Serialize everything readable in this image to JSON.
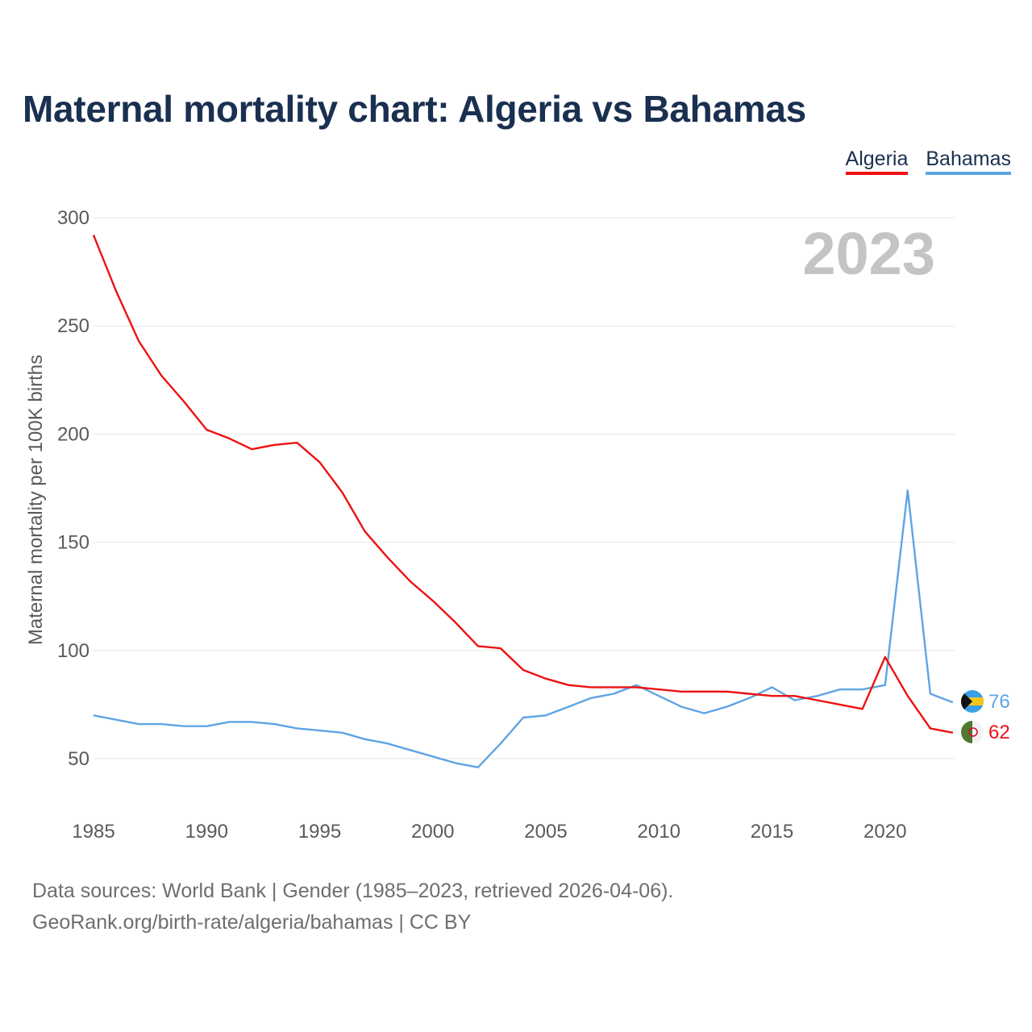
{
  "title": "Maternal mortality chart: Algeria vs Bahamas",
  "legend": [
    {
      "label": "Algeria",
      "color": "#ee1111"
    },
    {
      "label": "Bahamas",
      "color": "#5fa4e3"
    }
  ],
  "year_watermark": "2023",
  "footer": {
    "line1": "Data sources: World Bank | Gender (1985–2023, retrieved 2026-04-06).",
    "line2": "GeoRank.org/birth-rate/algeria/bahamas | CC BY"
  },
  "chart_data": {
    "type": "line",
    "title": "Maternal mortality chart: Algeria vs Bahamas",
    "xlabel": "",
    "ylabel": "Maternal mortality per 100K births",
    "xlim": [
      1985,
      2023
    ],
    "ylim": [
      30,
      300
    ],
    "x_ticks": [
      1985,
      1990,
      1995,
      2000,
      2005,
      2010,
      2015,
      2020
    ],
    "y_ticks": [
      50,
      100,
      150,
      200,
      250,
      300
    ],
    "grid": true,
    "legend_position": "top-right",
    "x": [
      1985,
      1986,
      1987,
      1988,
      1989,
      1990,
      1991,
      1992,
      1993,
      1994,
      1995,
      1996,
      1997,
      1998,
      1999,
      2000,
      2001,
      2002,
      2003,
      2004,
      2005,
      2006,
      2007,
      2008,
      2009,
      2010,
      2011,
      2012,
      2013,
      2014,
      2015,
      2016,
      2017,
      2018,
      2019,
      2020,
      2021,
      2022,
      2023
    ],
    "series": [
      {
        "name": "Algeria",
        "color": "#ee1111",
        "end_label": "62",
        "values": [
          292,
          266,
          243,
          227,
          215,
          202,
          198,
          193,
          195,
          196,
          187,
          173,
          155,
          143,
          132,
          123,
          113,
          102,
          101,
          91,
          87,
          84,
          83,
          83,
          83,
          82,
          81,
          81,
          81,
          80,
          79,
          79,
          77,
          75,
          73,
          97,
          79,
          64,
          62
        ]
      },
      {
        "name": "Bahamas",
        "color": "#5fa4e3",
        "end_label": "76",
        "values": [
          70,
          68,
          66,
          66,
          65,
          65,
          67,
          67,
          66,
          64,
          63,
          62,
          59,
          57,
          54,
          51,
          48,
          46,
          57,
          69,
          70,
          74,
          78,
          80,
          84,
          79,
          74,
          71,
          74,
          78,
          83,
          77,
          79,
          82,
          82,
          84,
          174,
          80,
          76
        ]
      }
    ]
  }
}
